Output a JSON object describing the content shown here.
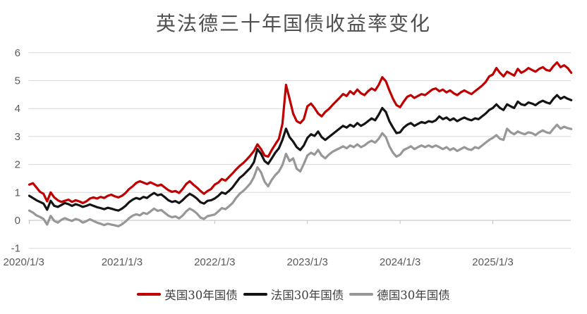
{
  "title": "英法德三十年国债收益率变化",
  "chart_data": {
    "type": "line",
    "title": "英法德三十年国债收益率变化",
    "xlabel": "",
    "ylabel": "",
    "ylim": [
      -1,
      6
    ],
    "y_ticks": [
      -1,
      0,
      1,
      2,
      3,
      4,
      5,
      6
    ],
    "x_tick_labels": [
      "2020/1/3",
      "2021/1/3",
      "2022/1/3",
      "2023/1/3",
      "2024/1/3",
      "2025/1/3"
    ],
    "x_sampling": "biweekly points starting 2020/1/3, 26 per year",
    "grid": "horizontal",
    "legend_position": "bottom",
    "grid_color": "#D8D8D8",
    "axis_line_color": "#BFBFBF",
    "tick_text_color": "#595959",
    "series": [
      {
        "name": "英国30年国债",
        "key": "uk-30y",
        "color": "#C00000",
        "values": [
          1.28,
          1.33,
          1.18,
          1.02,
          0.95,
          0.68,
          1.0,
          0.82,
          0.72,
          0.66,
          0.7,
          0.74,
          0.66,
          0.72,
          0.68,
          0.62,
          0.68,
          0.78,
          0.82,
          0.78,
          0.84,
          0.8,
          0.88,
          0.92,
          0.86,
          0.82,
          0.88,
          0.98,
          1.12,
          1.22,
          1.34,
          1.4,
          1.35,
          1.3,
          1.36,
          1.3,
          1.24,
          1.28,
          1.18,
          1.08,
          1.02,
          1.05,
          0.98,
          1.12,
          1.3,
          1.4,
          1.28,
          1.18,
          1.05,
          0.95,
          1.05,
          1.12,
          1.28,
          1.35,
          1.48,
          1.42,
          1.55,
          1.68,
          1.82,
          1.95,
          2.05,
          2.18,
          2.32,
          2.48,
          2.72,
          2.55,
          2.32,
          2.28,
          2.52,
          2.72,
          2.92,
          3.45,
          4.85,
          4.35,
          3.82,
          3.55,
          3.48,
          3.62,
          4.08,
          4.18,
          4.02,
          3.82,
          3.72,
          3.88,
          3.98,
          4.12,
          4.25,
          4.38,
          4.52,
          4.45,
          4.62,
          4.52,
          4.68,
          4.55,
          4.48,
          4.62,
          4.72,
          4.65,
          4.85,
          5.12,
          4.98,
          4.65,
          4.35,
          4.12,
          4.05,
          4.25,
          4.42,
          4.48,
          4.38,
          4.45,
          4.52,
          4.48,
          4.58,
          4.68,
          4.72,
          4.62,
          4.68,
          4.58,
          4.65,
          4.55,
          4.48,
          4.58,
          4.65,
          4.58,
          4.52,
          4.62,
          4.72,
          4.82,
          4.95,
          5.15,
          5.22,
          5.45,
          5.28,
          5.15,
          5.32,
          5.25,
          5.18,
          5.42,
          5.28,
          5.35,
          5.45,
          5.38,
          5.32,
          5.42,
          5.48,
          5.38,
          5.35,
          5.52,
          5.65,
          5.48,
          5.55,
          5.45,
          5.28
        ]
      },
      {
        "name": "法国30年国债",
        "key": "france-30y",
        "color": "#141414",
        "values": [
          0.88,
          0.8,
          0.72,
          0.66,
          0.6,
          0.38,
          0.7,
          0.52,
          0.48,
          0.55,
          0.62,
          0.58,
          0.52,
          0.58,
          0.54,
          0.48,
          0.52,
          0.57,
          0.52,
          0.47,
          0.44,
          0.4,
          0.45,
          0.42,
          0.38,
          0.35,
          0.42,
          0.52,
          0.65,
          0.74,
          0.8,
          0.76,
          0.84,
          0.8,
          0.9,
          0.98,
          0.9,
          0.93,
          0.83,
          0.72,
          0.66,
          0.69,
          0.62,
          0.72,
          0.85,
          0.95,
          0.88,
          0.78,
          0.65,
          0.6,
          0.7,
          0.72,
          0.78,
          0.88,
          1.0,
          0.95,
          1.05,
          1.18,
          1.35,
          1.52,
          1.62,
          1.75,
          1.88,
          2.08,
          2.55,
          2.38,
          2.12,
          2.02,
          2.22,
          2.42,
          2.58,
          2.88,
          3.28,
          2.98,
          2.82,
          2.62,
          2.52,
          2.68,
          2.95,
          3.08,
          3.02,
          3.18,
          2.98,
          2.88,
          2.98,
          3.08,
          3.18,
          3.28,
          3.38,
          3.32,
          3.42,
          3.35,
          3.48,
          3.38,
          3.45,
          3.55,
          3.65,
          3.58,
          3.78,
          4.02,
          3.88,
          3.55,
          3.32,
          3.12,
          3.15,
          3.32,
          3.42,
          3.48,
          3.38,
          3.45,
          3.52,
          3.48,
          3.55,
          3.52,
          3.58,
          3.72,
          3.62,
          3.68,
          3.58,
          3.65,
          3.55,
          3.62,
          3.68,
          3.62,
          3.58,
          3.65,
          3.62,
          3.72,
          3.82,
          3.95,
          4.02,
          4.15,
          4.02,
          3.95,
          4.15,
          4.08,
          4.02,
          4.25,
          4.15,
          4.12,
          4.22,
          4.18,
          4.12,
          4.22,
          4.28,
          4.22,
          4.18,
          4.35,
          4.48,
          4.35,
          4.42,
          4.35,
          4.3
        ]
      },
      {
        "name": "德国30年国债",
        "key": "germany-30y",
        "color": "#979797",
        "values": [
          0.35,
          0.28,
          0.18,
          0.12,
          0.05,
          -0.15,
          0.16,
          -0.02,
          -0.08,
          0.02,
          0.08,
          0.02,
          -0.02,
          0.05,
          0.01,
          -0.08,
          -0.03,
          0.04,
          -0.02,
          -0.08,
          -0.12,
          -0.17,
          -0.12,
          -0.15,
          -0.18,
          -0.21,
          -0.14,
          -0.04,
          0.08,
          0.17,
          0.22,
          0.18,
          0.27,
          0.23,
          0.32,
          0.42,
          0.34,
          0.37,
          0.27,
          0.17,
          0.11,
          0.14,
          0.07,
          0.17,
          0.32,
          0.42,
          0.35,
          0.25,
          0.1,
          0.05,
          0.15,
          0.18,
          0.21,
          0.32,
          0.44,
          0.4,
          0.5,
          0.62,
          0.8,
          0.95,
          1.05,
          1.18,
          1.32,
          1.55,
          1.9,
          1.72,
          1.38,
          1.22,
          1.45,
          1.62,
          1.75,
          1.98,
          2.38,
          2.12,
          2.22,
          1.85,
          1.75,
          2.02,
          2.32,
          2.42,
          2.35,
          2.52,
          2.32,
          2.22,
          2.35,
          2.45,
          2.52,
          2.58,
          2.65,
          2.58,
          2.68,
          2.62,
          2.72,
          2.62,
          2.68,
          2.78,
          2.85,
          2.78,
          2.92,
          3.12,
          2.98,
          2.65,
          2.42,
          2.28,
          2.35,
          2.52,
          2.58,
          2.65,
          2.55,
          2.62,
          2.68,
          2.62,
          2.68,
          2.62,
          2.68,
          2.62,
          2.55,
          2.62,
          2.52,
          2.58,
          2.48,
          2.55,
          2.62,
          2.55,
          2.52,
          2.62,
          2.58,
          2.68,
          2.78,
          2.88,
          2.95,
          3.05,
          2.92,
          2.88,
          3.28,
          3.15,
          3.08,
          3.18,
          3.12,
          3.08,
          3.15,
          3.12,
          3.05,
          3.15,
          3.22,
          3.15,
          3.12,
          3.28,
          3.42,
          3.28,
          3.35,
          3.3,
          3.27
        ]
      }
    ]
  }
}
